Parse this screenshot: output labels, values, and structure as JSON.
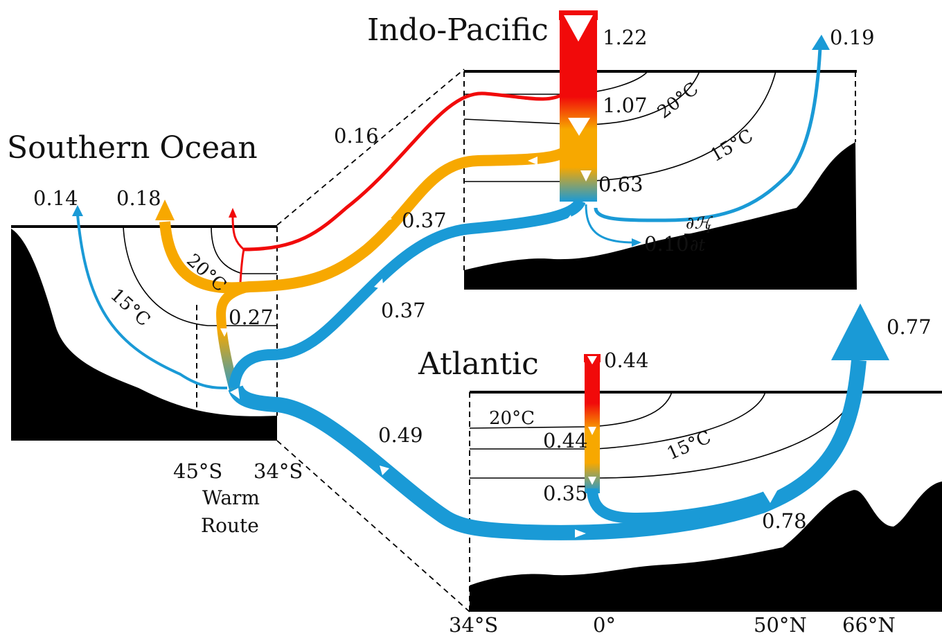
{
  "titles": {
    "indo_pacific": "Indo-Pacific",
    "southern_ocean": "Southern Ocean",
    "atlantic": "Atlantic"
  },
  "colors": {
    "warm_red": "#f10a0a",
    "intermediate_orange": "#f7a800",
    "cold_blue": "#1a9ad6",
    "land_black": "#000000"
  },
  "isotherms": {
    "indo_pacific_20c": "20°C",
    "indo_pacific_15c": "15°C",
    "southern_20c": "20°C",
    "southern_15c": "15°C",
    "atlantic_20c": "20°C",
    "atlantic_15c": "15°C"
  },
  "transports": {
    "ip_surface_in": "1.22",
    "ip_mid": "1.07",
    "ip_deep": "0.63",
    "ip_north_out": "0.19",
    "ip_storage": "0.10",
    "ip_storage_term_numer": "∂ℋ",
    "ip_storage_term_sub": "I",
    "ip_storage_term_denom": "∂t",
    "red_to_south": "0.16",
    "orange_to_south": "0.37",
    "blue_from_south_ip": "0.37",
    "so_blue_up": "0.14",
    "so_orange_up": "0.18",
    "so_warm_route": "0.27",
    "blue_to_atlantic": "0.49",
    "at_surface_in": "0.44",
    "at_mid": "0.44",
    "at_deep": "0.35",
    "at_north_flow": "0.78",
    "at_north_out": "0.77"
  },
  "latitudes": {
    "so_45s": "45°S",
    "so_34s": "34°S",
    "at_34s": "34°S",
    "at_0": "0°",
    "at_50n": "50°N",
    "at_66n": "66°N"
  },
  "warm_route": {
    "line1": "Warm",
    "line2": "Route"
  }
}
